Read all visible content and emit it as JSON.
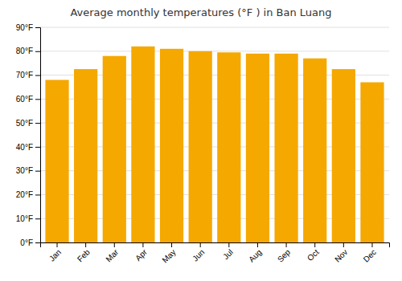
{
  "chart_data": {
    "type": "bar",
    "title": "Average monthly temperatures (°F ) in Ban Luang",
    "categories": [
      "Jan",
      "Feb",
      "Mar",
      "Apr",
      "May",
      "Jun",
      "Jul",
      "Aug",
      "Sep",
      "Oct",
      "Nov",
      "Dec"
    ],
    "values": [
      68,
      72.5,
      78,
      82,
      81,
      80,
      79.5,
      79,
      79,
      77,
      72.5,
      67
    ],
    "color": "#F5A800",
    "ylim": [
      0,
      90
    ],
    "yticks": [
      {
        "value": 0,
        "label": "0°F"
      },
      {
        "value": 10,
        "label": "10°F"
      },
      {
        "value": 20,
        "label": "20°F"
      },
      {
        "value": 30,
        "label": "30°F"
      },
      {
        "value": 40,
        "label": "40°F"
      },
      {
        "value": 50,
        "label": "50°F"
      },
      {
        "value": 60,
        "label": "60°F"
      },
      {
        "value": 70,
        "label": "70°F"
      },
      {
        "value": 80,
        "label": "80°F"
      },
      {
        "value": 90,
        "label": "90°F"
      }
    ],
    "grid": true
  }
}
